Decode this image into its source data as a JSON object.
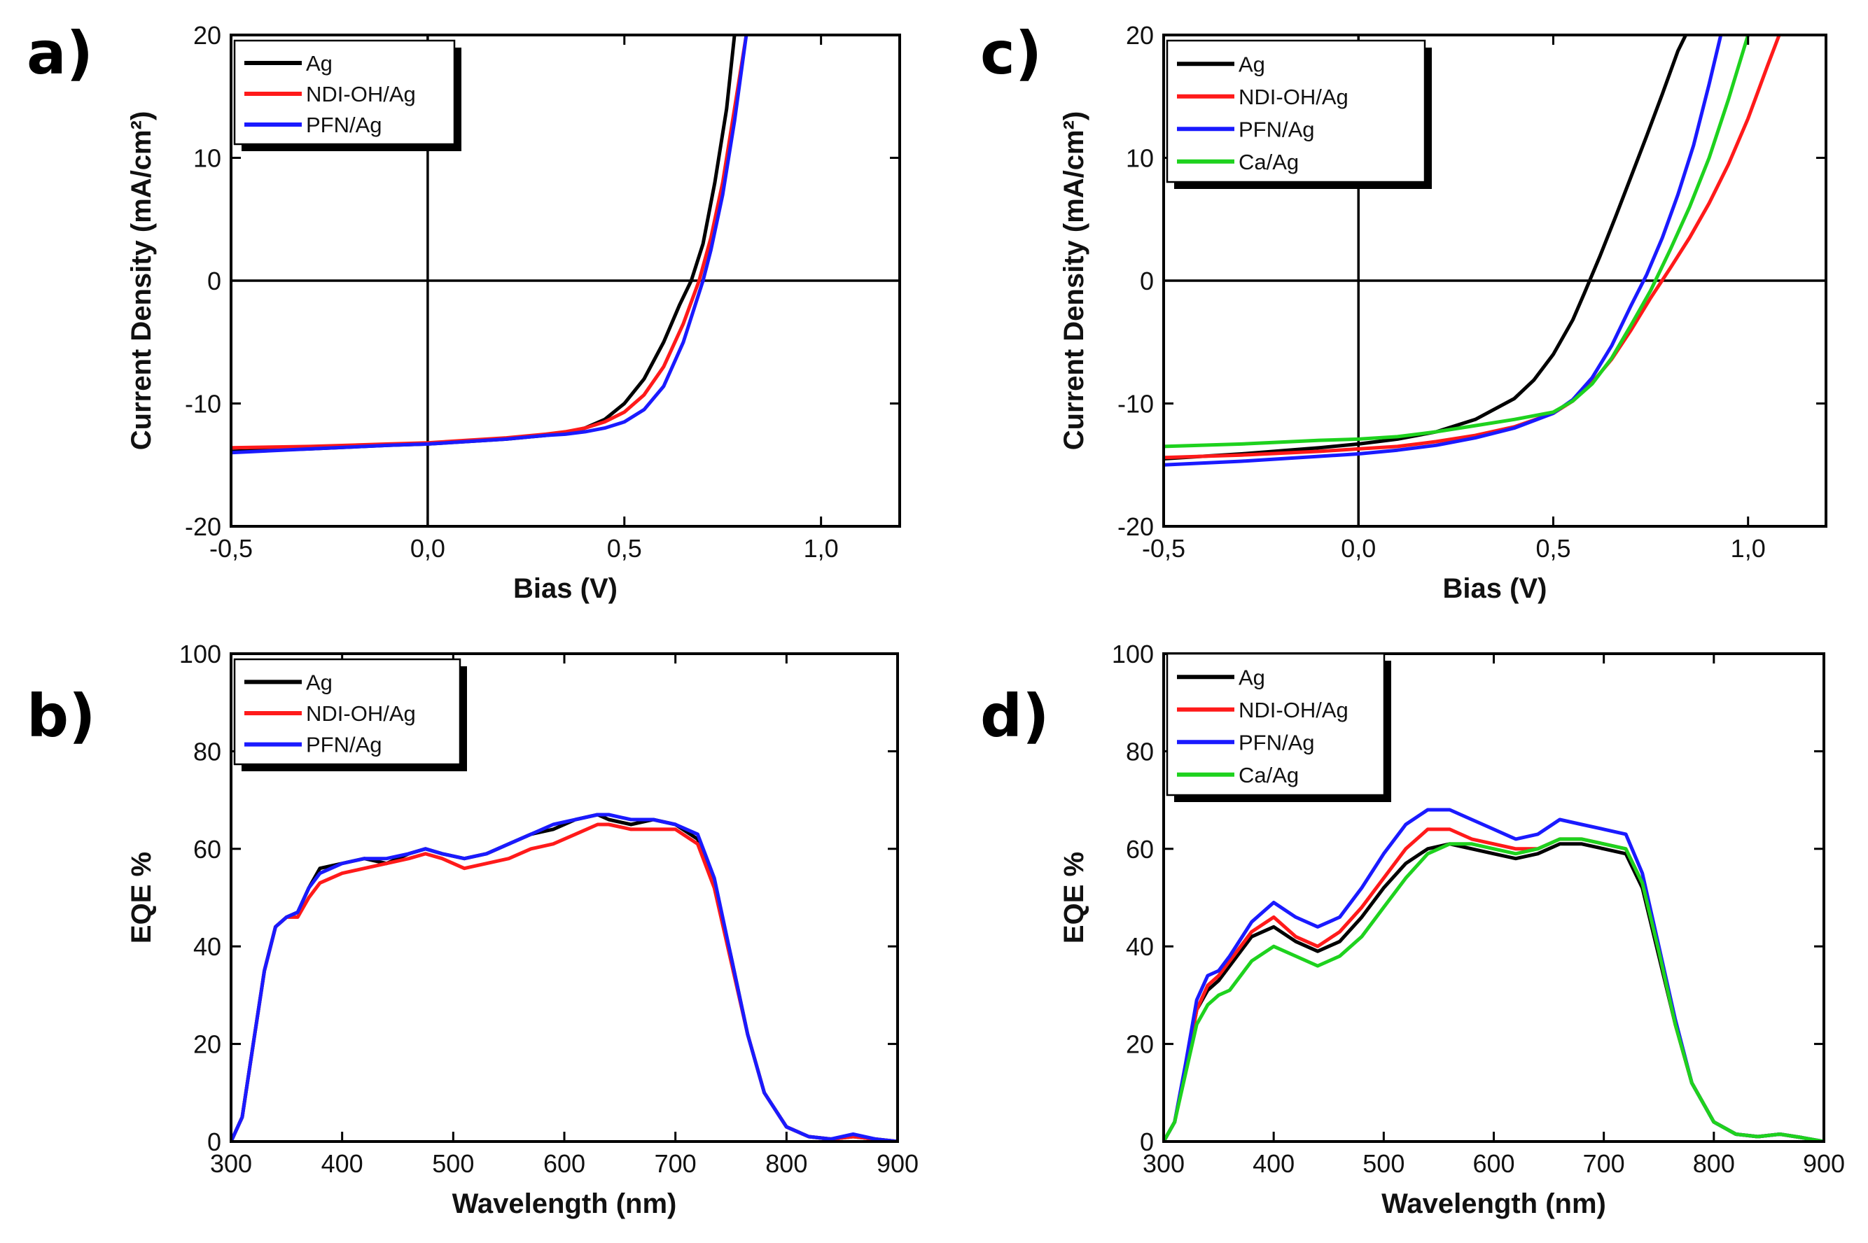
{
  "colors": {
    "Ag": "#000000",
    "NDI-OH/Ag": "#ff1a1a",
    "PFN/Ag": "#1a1aff",
    "Ca/Ag": "#1ed21e"
  },
  "chart_data": [
    {
      "id": "a",
      "panel_label": "a)",
      "type": "line",
      "xlabel": "Bias (V)",
      "ylabel": "Current Density (mA/cm²)",
      "xlim": [
        -0.5,
        1.2
      ],
      "ylim": [
        -20,
        20
      ],
      "xticks": [
        -0.5,
        0.0,
        0.5,
        1.0
      ],
      "xtick_labels": [
        "-0,5",
        "0,0",
        "0,5",
        "1,0"
      ],
      "yticks": [
        -20,
        -10,
        0,
        10,
        20
      ],
      "ytick_labels": [
        "-20",
        "-10",
        "0",
        "10",
        "20"
      ],
      "zero_lines": true,
      "legend": "top-left",
      "series": [
        {
          "name": "Ag",
          "x": [
            -0.5,
            -0.3,
            -0.1,
            0.0,
            0.1,
            0.2,
            0.3,
            0.35,
            0.4,
            0.45,
            0.5,
            0.55,
            0.6,
            0.64,
            0.67,
            0.7,
            0.73,
            0.76,
            0.78
          ],
          "y": [
            -13.9,
            -13.7,
            -13.4,
            -13.3,
            -13.1,
            -12.9,
            -12.6,
            -12.4,
            -12.0,
            -11.3,
            -10.0,
            -8.0,
            -5.0,
            -2.0,
            0.0,
            3.0,
            8.0,
            14.0,
            20.0
          ]
        },
        {
          "name": "NDI-OH/Ag",
          "x": [
            -0.5,
            -0.3,
            -0.1,
            0.0,
            0.1,
            0.2,
            0.3,
            0.35,
            0.4,
            0.45,
            0.5,
            0.55,
            0.6,
            0.65,
            0.69,
            0.72,
            0.75,
            0.78,
            0.81
          ],
          "y": [
            -13.6,
            -13.5,
            -13.3,
            -13.2,
            -13.0,
            -12.8,
            -12.5,
            -12.3,
            -12.0,
            -11.5,
            -10.7,
            -9.3,
            -7.0,
            -3.5,
            0.0,
            3.5,
            8.0,
            14.0,
            20.0
          ]
        },
        {
          "name": "PFN/Ag",
          "x": [
            -0.5,
            -0.3,
            -0.1,
            0.0,
            0.1,
            0.2,
            0.3,
            0.35,
            0.4,
            0.45,
            0.5,
            0.55,
            0.6,
            0.65,
            0.7,
            0.72,
            0.75,
            0.78,
            0.81
          ],
          "y": [
            -14.0,
            -13.7,
            -13.4,
            -13.3,
            -13.1,
            -12.9,
            -12.6,
            -12.5,
            -12.3,
            -12.0,
            -11.5,
            -10.5,
            -8.6,
            -5.0,
            0.0,
            2.5,
            7.0,
            13.0,
            20.0
          ]
        }
      ]
    },
    {
      "id": "c",
      "panel_label": "c)",
      "type": "line",
      "xlabel": "Bias (V)",
      "ylabel": "Current Density (mA/cm²)",
      "xlim": [
        -0.5,
        1.2
      ],
      "ylim": [
        -20,
        20
      ],
      "xticks": [
        -0.5,
        0.0,
        0.5,
        1.0
      ],
      "xtick_labels": [
        "-0,5",
        "0,0",
        "0,5",
        "1,0"
      ],
      "yticks": [
        -20,
        -10,
        0,
        10,
        20
      ],
      "ytick_labels": [
        "-20",
        "-10",
        "0",
        "10",
        "20"
      ],
      "zero_lines": true,
      "legend": "top-left",
      "series": [
        {
          "name": "Ag",
          "x": [
            -0.5,
            -0.3,
            -0.1,
            0.0,
            0.1,
            0.2,
            0.3,
            0.4,
            0.45,
            0.5,
            0.55,
            0.58,
            0.62,
            0.66,
            0.7,
            0.74,
            0.78,
            0.82,
            0.84
          ],
          "y": [
            -14.5,
            -14.1,
            -13.6,
            -13.3,
            -12.9,
            -12.3,
            -11.3,
            -9.6,
            -8.1,
            -6.0,
            -3.2,
            -1.0,
            2.0,
            5.2,
            8.5,
            11.8,
            15.2,
            18.7,
            20.0
          ]
        },
        {
          "name": "NDI-OH/Ag",
          "x": [
            -0.5,
            -0.3,
            -0.1,
            0.0,
            0.1,
            0.2,
            0.3,
            0.4,
            0.5,
            0.55,
            0.6,
            0.65,
            0.7,
            0.75,
            0.8,
            0.85,
            0.9,
            0.95,
            1.0,
            1.05,
            1.08
          ],
          "y": [
            -14.4,
            -14.2,
            -13.9,
            -13.7,
            -13.5,
            -13.1,
            -12.6,
            -11.9,
            -10.8,
            -9.8,
            -8.3,
            -6.4,
            -4.0,
            -1.4,
            1.0,
            3.5,
            6.3,
            9.5,
            13.2,
            17.5,
            20.0
          ]
        },
        {
          "name": "PFN/Ag",
          "x": [
            -0.5,
            -0.3,
            -0.1,
            0.0,
            0.1,
            0.2,
            0.3,
            0.4,
            0.5,
            0.55,
            0.6,
            0.65,
            0.7,
            0.74,
            0.78,
            0.82,
            0.86,
            0.9,
            0.93
          ],
          "y": [
            -15.0,
            -14.7,
            -14.3,
            -14.1,
            -13.8,
            -13.4,
            -12.8,
            -12.0,
            -10.8,
            -9.7,
            -7.9,
            -5.3,
            -2.0,
            0.5,
            3.5,
            7.0,
            11.0,
            16.0,
            20.0
          ]
        },
        {
          "name": "Ca/Ag",
          "x": [
            -0.5,
            -0.3,
            -0.1,
            0.0,
            0.1,
            0.2,
            0.3,
            0.4,
            0.5,
            0.55,
            0.6,
            0.65,
            0.7,
            0.75,
            0.8,
            0.85,
            0.9,
            0.95,
            1.0
          ],
          "y": [
            -13.5,
            -13.3,
            -13.0,
            -12.9,
            -12.7,
            -12.3,
            -11.8,
            -11.3,
            -10.7,
            -9.8,
            -8.4,
            -6.3,
            -3.6,
            -0.8,
            2.5,
            6.0,
            10.0,
            14.8,
            20.0
          ]
        }
      ]
    },
    {
      "id": "b",
      "panel_label": "b)",
      "type": "line",
      "xlabel": "Wavelength (nm)",
      "ylabel": "EQE %",
      "xlim": [
        300,
        900
      ],
      "ylim": [
        0,
        100
      ],
      "xticks": [
        300,
        400,
        500,
        600,
        700,
        800,
        900
      ],
      "xtick_labels": [
        "300",
        "400",
        "500",
        "600",
        "700",
        "800",
        "900"
      ],
      "yticks": [
        0,
        20,
        40,
        60,
        80,
        100
      ],
      "ytick_labels": [
        "0",
        "20",
        "40",
        "60",
        "80",
        "100"
      ],
      "zero_lines": false,
      "legend": "top-left",
      "series": [
        {
          "name": "Ag",
          "x": [
            300,
            310,
            320,
            330,
            340,
            350,
            360,
            370,
            380,
            400,
            420,
            440,
            460,
            475,
            490,
            510,
            530,
            550,
            570,
            590,
            610,
            630,
            640,
            660,
            680,
            700,
            720,
            735,
            750,
            765,
            780,
            800,
            820,
            840,
            860,
            880,
            900
          ],
          "y": [
            0,
            5,
            20,
            35,
            44,
            46,
            47,
            52,
            56,
            57,
            58,
            57,
            59,
            60,
            59,
            58,
            59,
            61,
            63,
            64,
            66,
            67,
            66,
            65,
            66,
            65,
            62,
            53,
            38,
            22,
            10,
            3,
            1,
            0.5,
            1,
            0.5,
            0
          ]
        },
        {
          "name": "NDI-OH/Ag",
          "x": [
            300,
            310,
            320,
            330,
            340,
            350,
            360,
            370,
            380,
            400,
            420,
            440,
            460,
            475,
            490,
            510,
            530,
            550,
            570,
            590,
            610,
            630,
            640,
            660,
            680,
            700,
            720,
            735,
            750,
            765,
            780,
            800,
            820,
            840,
            860,
            880,
            900
          ],
          "y": [
            0,
            5,
            20,
            35,
            44,
            46,
            46,
            50,
            53,
            55,
            56,
            57,
            58,
            59,
            58,
            56,
            57,
            58,
            60,
            61,
            63,
            65,
            65,
            64,
            64,
            64,
            61,
            52,
            37,
            22,
            10,
            3,
            1,
            0.5,
            1,
            0.5,
            0
          ]
        },
        {
          "name": "PFN/Ag",
          "x": [
            300,
            310,
            320,
            330,
            340,
            350,
            360,
            370,
            380,
            400,
            420,
            440,
            460,
            475,
            490,
            510,
            530,
            550,
            570,
            590,
            610,
            630,
            640,
            660,
            680,
            700,
            720,
            735,
            750,
            765,
            780,
            800,
            820,
            840,
            860,
            880,
            900
          ],
          "y": [
            0,
            5,
            20,
            35,
            44,
            46,
            47,
            52,
            55,
            57,
            58,
            58,
            59,
            60,
            59,
            58,
            59,
            61,
            63,
            65,
            66,
            67,
            67,
            66,
            66,
            65,
            63,
            54,
            38,
            22,
            10,
            3,
            1,
            0.5,
            1.5,
            0.5,
            0
          ]
        }
      ]
    },
    {
      "id": "d",
      "panel_label": "d)",
      "type": "line",
      "xlabel": "Wavelength (nm)",
      "ylabel": "EQE %",
      "xlim": [
        300,
        900
      ],
      "ylim": [
        0,
        100
      ],
      "xticks": [
        300,
        400,
        500,
        600,
        700,
        800,
        900
      ],
      "xtick_labels": [
        "300",
        "400",
        "500",
        "600",
        "700",
        "800",
        "900"
      ],
      "yticks": [
        0,
        20,
        40,
        60,
        80,
        100
      ],
      "ytick_labels": [
        "0",
        "20",
        "40",
        "60",
        "80",
        "100"
      ],
      "zero_lines": false,
      "legend": "top-left",
      "series": [
        {
          "name": "Ag",
          "x": [
            300,
            310,
            320,
            330,
            340,
            350,
            360,
            380,
            400,
            420,
            440,
            460,
            480,
            500,
            520,
            540,
            560,
            580,
            600,
            620,
            640,
            660,
            680,
            700,
            720,
            735,
            750,
            765,
            780,
            800,
            820,
            840,
            860,
            880,
            900
          ],
          "y": [
            0,
            4,
            15,
            27,
            31,
            33,
            36,
            42,
            44,
            41,
            39,
            41,
            46,
            52,
            57,
            60,
            61,
            60,
            59,
            58,
            59,
            61,
            61,
            60,
            59,
            52,
            38,
            24,
            12,
            4,
            1.5,
            1,
            1.5,
            0.8,
            0
          ]
        },
        {
          "name": "NDI-OH/Ag",
          "x": [
            300,
            310,
            320,
            330,
            340,
            350,
            360,
            380,
            400,
            420,
            440,
            460,
            480,
            500,
            520,
            540,
            560,
            580,
            600,
            620,
            640,
            660,
            680,
            700,
            720,
            735,
            750,
            765,
            780,
            800,
            820,
            840,
            860,
            880,
            900
          ],
          "y": [
            0,
            4,
            15,
            27,
            32,
            34,
            37,
            43,
            46,
            42,
            40,
            43,
            48,
            54,
            60,
            64,
            64,
            62,
            61,
            60,
            60,
            62,
            62,
            61,
            60,
            53,
            39,
            24,
            12,
            4,
            1.5,
            1,
            1.5,
            0.8,
            0
          ]
        },
        {
          "name": "PFN/Ag",
          "x": [
            300,
            310,
            320,
            330,
            340,
            350,
            360,
            380,
            400,
            420,
            440,
            460,
            480,
            500,
            520,
            540,
            560,
            580,
            600,
            620,
            640,
            660,
            680,
            700,
            720,
            735,
            750,
            765,
            780,
            800,
            820,
            840,
            860,
            880,
            900
          ],
          "y": [
            0,
            4,
            16,
            29,
            34,
            35,
            38,
            45,
            49,
            46,
            44,
            46,
            52,
            59,
            65,
            68,
            68,
            66,
            64,
            62,
            63,
            66,
            65,
            64,
            63,
            55,
            40,
            25,
            12,
            4,
            1.5,
            1,
            1.5,
            0.8,
            0
          ]
        },
        {
          "name": "Ca/Ag",
          "x": [
            300,
            310,
            320,
            330,
            340,
            350,
            360,
            380,
            400,
            420,
            440,
            460,
            480,
            500,
            520,
            540,
            560,
            580,
            600,
            620,
            640,
            660,
            680,
            700,
            720,
            735,
            750,
            765,
            780,
            800,
            820,
            840,
            860,
            880,
            900
          ],
          "y": [
            0,
            4,
            14,
            24,
            28,
            30,
            31,
            37,
            40,
            38,
            36,
            38,
            42,
            48,
            54,
            59,
            61,
            61,
            60,
            59,
            60,
            62,
            62,
            61,
            60,
            53,
            39,
            24,
            12,
            4,
            1.5,
            1,
            1.5,
            0.8,
            0
          ]
        }
      ]
    }
  ]
}
